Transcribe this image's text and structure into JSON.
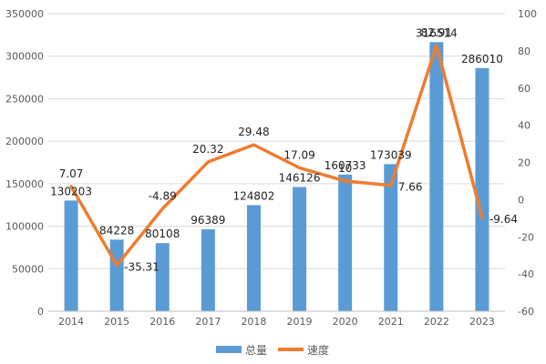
{
  "chart_data": {
    "type": "bar",
    "categories": [
      "2014",
      "2015",
      "2016",
      "2017",
      "2018",
      "2019",
      "2020",
      "2021",
      "2022",
      "2023"
    ],
    "series": [
      {
        "name": "总量",
        "type": "bar",
        "axis": "left",
        "color": "#5B9BD5",
        "values": [
          130203,
          84228,
          80108,
          96389,
          124802,
          146126,
          160733,
          173039,
          316514,
          286010
        ],
        "labels": [
          "130203",
          "84228",
          "80108",
          "96389",
          "124802",
          "146126",
          "160733",
          "173039",
          "316514",
          "286010"
        ]
      },
      {
        "name": "速度",
        "type": "line",
        "axis": "right",
        "color": "#ED7D31",
        "values": [
          7.07,
          -35.31,
          -4.89,
          20.32,
          29.48,
          17.09,
          10,
          7.66,
          82.91,
          -9.64
        ],
        "labels": [
          "7.07",
          "-35.31",
          "-4.89",
          "20.32",
          "29.48",
          "17.09",
          "10",
          "7.66",
          "82.91",
          "-9.64"
        ]
      }
    ],
    "y_left": {
      "min": 0,
      "max": 350000,
      "step": 50000
    },
    "y_right": {
      "min": -60,
      "max": 100,
      "step": 20
    },
    "grid": true,
    "legend": "bottom",
    "title": "",
    "xlabel": "",
    "ylabel": ""
  }
}
